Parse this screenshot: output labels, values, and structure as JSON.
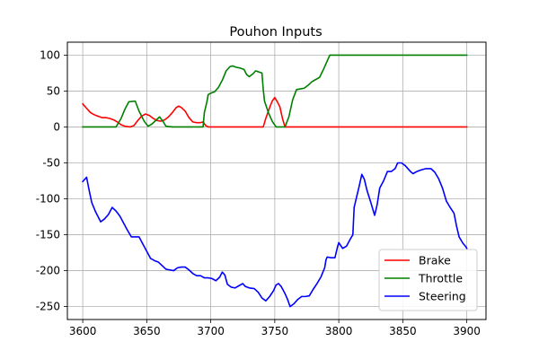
{
  "chart_data": {
    "type": "line",
    "title": "Pouhon Inputs",
    "xlabel": "",
    "ylabel": "",
    "xlim": [
      3588,
      3915
    ],
    "ylim": [
      -268,
      118
    ],
    "xticks": [
      3600,
      3650,
      3700,
      3750,
      3800,
      3850,
      3900
    ],
    "yticks": [
      100,
      50,
      0,
      -50,
      -100,
      -150,
      -200,
      -250
    ],
    "grid": true,
    "legend_position": "lower-right",
    "series": [
      {
        "name": "Brake",
        "color": "#ff0000",
        "points": [
          [
            3600,
            32
          ],
          [
            3603,
            26
          ],
          [
            3606,
            20
          ],
          [
            3609,
            17
          ],
          [
            3612,
            15
          ],
          [
            3615,
            13
          ],
          [
            3618,
            13
          ],
          [
            3621,
            12
          ],
          [
            3624,
            10
          ],
          [
            3627,
            7
          ],
          [
            3630,
            3
          ],
          [
            3633,
            1
          ],
          [
            3637,
            0
          ],
          [
            3640,
            2
          ],
          [
            3643,
            9
          ],
          [
            3646,
            15
          ],
          [
            3649,
            18
          ],
          [
            3652,
            16
          ],
          [
            3655,
            12
          ],
          [
            3658,
            9
          ],
          [
            3661,
            8
          ],
          [
            3664,
            10
          ],
          [
            3667,
            14
          ],
          [
            3670,
            20
          ],
          [
            3673,
            27
          ],
          [
            3675,
            29
          ],
          [
            3677,
            27
          ],
          [
            3680,
            22
          ],
          [
            3683,
            13
          ],
          [
            3686,
            7
          ],
          [
            3689,
            6
          ],
          [
            3692,
            6
          ],
          [
            3694,
            7
          ],
          [
            3696,
            2
          ],
          [
            3698,
            0
          ],
          [
            3700,
            0
          ],
          [
            3720,
            0
          ],
          [
            3735,
            0
          ],
          [
            3741,
            0
          ],
          [
            3743,
            12
          ],
          [
            3746,
            27
          ],
          [
            3748,
            36
          ],
          [
            3750,
            41
          ],
          [
            3752,
            35
          ],
          [
            3754,
            28
          ],
          [
            3756,
            12
          ],
          [
            3758,
            0
          ],
          [
            3770,
            0
          ],
          [
            3800,
            0
          ],
          [
            3850,
            0
          ],
          [
            3900,
            0
          ]
        ]
      },
      {
        "name": "Throttle",
        "color": "#008000",
        "points": [
          [
            3600,
            0
          ],
          [
            3626,
            0
          ],
          [
            3630,
            12
          ],
          [
            3633,
            25
          ],
          [
            3636,
            35
          ],
          [
            3641,
            36
          ],
          [
            3644,
            22
          ],
          [
            3648,
            8
          ],
          [
            3651,
            1
          ],
          [
            3654,
            4
          ],
          [
            3657,
            9
          ],
          [
            3660,
            14
          ],
          [
            3663,
            7
          ],
          [
            3665,
            1
          ],
          [
            3670,
            0
          ],
          [
            3680,
            0
          ],
          [
            3694,
            0
          ],
          [
            3695,
            20
          ],
          [
            3697,
            35
          ],
          [
            3698,
            45
          ],
          [
            3700,
            47
          ],
          [
            3703,
            49
          ],
          [
            3706,
            55
          ],
          [
            3709,
            65
          ],
          [
            3712,
            78
          ],
          [
            3715,
            84
          ],
          [
            3717,
            85
          ],
          [
            3720,
            83
          ],
          [
            3723,
            82
          ],
          [
            3726,
            80
          ],
          [
            3728,
            73
          ],
          [
            3730,
            70
          ],
          [
            3733,
            74
          ],
          [
            3735,
            78
          ],
          [
            3737,
            77
          ],
          [
            3740,
            75
          ],
          [
            3741,
            52
          ],
          [
            3742,
            36
          ],
          [
            3745,
            20
          ],
          [
            3748,
            8
          ],
          [
            3751,
            0
          ],
          [
            3753,
            0
          ],
          [
            3756,
            0
          ],
          [
            3758,
            0
          ],
          [
            3761,
            14
          ],
          [
            3764,
            38
          ],
          [
            3767,
            52
          ],
          [
            3770,
            53
          ],
          [
            3773,
            54
          ],
          [
            3776,
            58
          ],
          [
            3779,
            63
          ],
          [
            3782,
            66
          ],
          [
            3785,
            69
          ],
          [
            3788,
            80
          ],
          [
            3791,
            92
          ],
          [
            3793,
            100
          ],
          [
            3800,
            100
          ],
          [
            3820,
            100
          ],
          [
            3850,
            100
          ],
          [
            3880,
            100
          ],
          [
            3900,
            100
          ]
        ]
      },
      {
        "name": "Steering",
        "color": "#0000ff",
        "points": [
          [
            3600,
            -76
          ],
          [
            3603,
            -70
          ],
          [
            3605,
            -88
          ],
          [
            3607,
            -105
          ],
          [
            3610,
            -118
          ],
          [
            3614,
            -132
          ],
          [
            3617,
            -128
          ],
          [
            3620,
            -122
          ],
          [
            3623,
            -112
          ],
          [
            3626,
            -117
          ],
          [
            3629,
            -124
          ],
          [
            3632,
            -134
          ],
          [
            3635,
            -144
          ],
          [
            3638,
            -153
          ],
          [
            3641,
            -153
          ],
          [
            3644,
            -153
          ],
          [
            3647,
            -163
          ],
          [
            3650,
            -173
          ],
          [
            3653,
            -183
          ],
          [
            3656,
            -186
          ],
          [
            3659,
            -188
          ],
          [
            3662,
            -193
          ],
          [
            3665,
            -198
          ],
          [
            3668,
            -199
          ],
          [
            3671,
            -200
          ],
          [
            3674,
            -196
          ],
          [
            3677,
            -195
          ],
          [
            3680,
            -195
          ],
          [
            3683,
            -199
          ],
          [
            3686,
            -204
          ],
          [
            3689,
            -207
          ],
          [
            3692,
            -207
          ],
          [
            3695,
            -210
          ],
          [
            3698,
            -210
          ],
          [
            3701,
            -211
          ],
          [
            3704,
            -214
          ],
          [
            3707,
            -209
          ],
          [
            3709,
            -202
          ],
          [
            3711,
            -206
          ],
          [
            3713,
            -219
          ],
          [
            3716,
            -223
          ],
          [
            3719,
            -224
          ],
          [
            3722,
            -221
          ],
          [
            3725,
            -218
          ],
          [
            3727,
            -222
          ],
          [
            3730,
            -224
          ],
          [
            3734,
            -225
          ],
          [
            3737,
            -230
          ],
          [
            3740,
            -238
          ],
          [
            3743,
            -242
          ],
          [
            3746,
            -236
          ],
          [
            3749,
            -228
          ],
          [
            3751,
            -220
          ],
          [
            3753,
            -218
          ],
          [
            3755,
            -222
          ],
          [
            3758,
            -232
          ],
          [
            3760,
            -240
          ],
          [
            3762,
            -250
          ],
          [
            3765,
            -246
          ],
          [
            3768,
            -240
          ],
          [
            3771,
            -236
          ],
          [
            3774,
            -236
          ],
          [
            3777,
            -235
          ],
          [
            3780,
            -226
          ],
          [
            3783,
            -218
          ],
          [
            3786,
            -209
          ],
          [
            3789,
            -196
          ],
          [
            3790,
            -185
          ],
          [
            3791,
            -181
          ],
          [
            3794,
            -182
          ],
          [
            3797,
            -182
          ],
          [
            3799,
            -167
          ],
          [
            3800,
            -161
          ],
          [
            3803,
            -169
          ],
          [
            3806,
            -166
          ],
          [
            3809,
            -156
          ],
          [
            3811,
            -150
          ],
          [
            3812,
            -112
          ],
          [
            3814,
            -97
          ],
          [
            3816,
            -82
          ],
          [
            3818,
            -66
          ],
          [
            3820,
            -73
          ],
          [
            3822,
            -88
          ],
          [
            3825,
            -105
          ],
          [
            3828,
            -123
          ],
          [
            3830,
            -108
          ],
          [
            3832,
            -85
          ],
          [
            3835,
            -75
          ],
          [
            3838,
            -62
          ],
          [
            3841,
            -62
          ],
          [
            3844,
            -58
          ],
          [
            3846,
            -50
          ],
          [
            3849,
            -50
          ],
          [
            3852,
            -54
          ],
          [
            3856,
            -62
          ],
          [
            3858,
            -65
          ],
          [
            3861,
            -62
          ],
          [
            3864,
            -60
          ],
          [
            3868,
            -58
          ],
          [
            3872,
            -58
          ],
          [
            3875,
            -63
          ],
          [
            3878,
            -72
          ],
          [
            3881,
            -85
          ],
          [
            3884,
            -103
          ],
          [
            3887,
            -112
          ],
          [
            3890,
            -120
          ],
          [
            3892,
            -138
          ],
          [
            3894,
            -153
          ],
          [
            3897,
            -162
          ],
          [
            3899,
            -166
          ],
          [
            3900,
            -169
          ]
        ]
      }
    ]
  }
}
